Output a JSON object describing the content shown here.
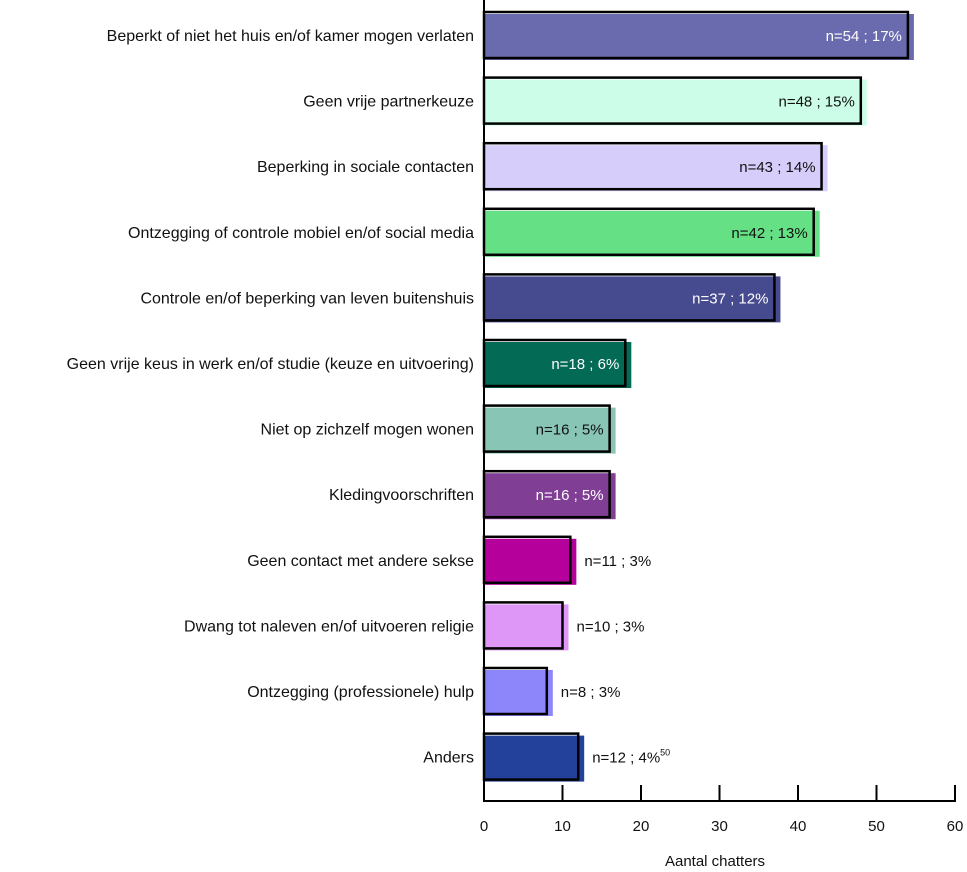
{
  "chart_data": {
    "type": "bar",
    "orientation": "horizontal",
    "xlabel": "Aantal chatters",
    "xlim": [
      0,
      60
    ],
    "xticks": [
      "0",
      "10",
      "20",
      "30",
      "40",
      "50",
      "60"
    ],
    "footnote_mark": "50",
    "categories": [
      "Beperkt of niet het huis en/of kamer mogen verlaten",
      "Geen vrije partnerkeuze",
      "Beperking in sociale contacten",
      "Ontzegging of controle mobiel en/of social media",
      "Controle en/of beperking van leven buitenshuis",
      "Geen vrije keus in werk en/of studie (keuze en uitvoering)",
      "Niet op zichzelf mogen wonen",
      "Kledingvoorschriften",
      "Geen contact met andere sekse",
      "Dwang tot naleven en/of uitvoeren religie",
      "Ontzegging (professionele) hulp",
      "Anders"
    ],
    "values": [
      54,
      48,
      43,
      42,
      37,
      18,
      16,
      16,
      11,
      10,
      8,
      12
    ],
    "labels": [
      "n=54 ; 17%",
      "n=48 ; 15%",
      "n=43 ; 14%",
      "n=42 ; 13%",
      "n=37 ; 12%",
      "n=18 ; 6%",
      "n=16 ; 5%",
      "n=16 ; 5%",
      "n=11 ; 3%",
      "n=10 ; 3%",
      "n=8 ; 3%",
      "n=12 ; 4%"
    ],
    "colors": [
      "#6a6aaf",
      "#ccfde8",
      "#d6cdfb",
      "#66e085",
      "#464a8e",
      "#036a55",
      "#88c5b5",
      "#803e95",
      "#b6009b",
      "#df97f7",
      "#8c86fa",
      "#23419a"
    ],
    "label_colors": [
      "#ffffff",
      "#111111",
      "#111111",
      "#111111",
      "#ffffff",
      "#ffffff",
      "#111111",
      "#ffffff",
      "#111111",
      "#111111",
      "#111111",
      "#111111"
    ],
    "label_positions": [
      "inside",
      "inside",
      "inside",
      "inside",
      "inside",
      "inside",
      "inside",
      "inside",
      "outside",
      "outside",
      "outside",
      "outside"
    ]
  }
}
